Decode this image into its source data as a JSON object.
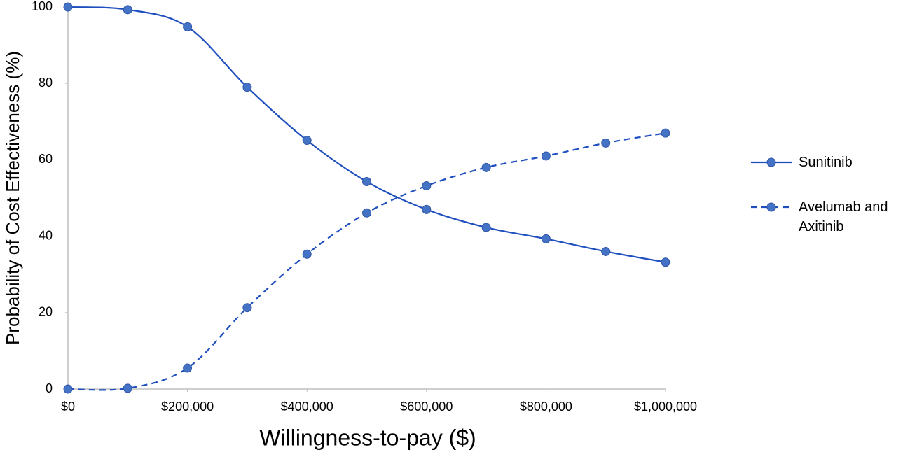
{
  "chart_data": {
    "type": "line",
    "x_label": "Willingness-to-pay ($)",
    "y_label": "Probability of Cost Effectiveness (%)",
    "x": [
      0,
      100000,
      200000,
      300000,
      400000,
      500000,
      600000,
      700000,
      800000,
      900000,
      1000000
    ],
    "series": [
      {
        "name": "Sunitinib",
        "color": "#4472c4",
        "line_color": "#1f4fbf",
        "line_style": "solid",
        "values": [
          100,
          99.3,
          94.8,
          79,
          65.1,
          54.3,
          47,
          42.3,
          39.3,
          36,
          33.2
        ]
      },
      {
        "name": "Avelumab and Axitinib",
        "color": "#4472c4",
        "line_color": "#1f4fbf",
        "line_style": "dashed",
        "values": [
          0,
          0.2,
          5.5,
          21.3,
          35.3,
          46.1,
          53.2,
          58,
          61,
          64.4,
          67
        ]
      }
    ],
    "xlim": [
      0,
      1000000
    ],
    "xticks": [
      {
        "value": 0,
        "label": "$0"
      },
      {
        "value": 200000,
        "label": "$200,000"
      },
      {
        "value": 400000,
        "label": "$400,000"
      },
      {
        "value": 600000,
        "label": "$600,000"
      },
      {
        "value": 800000,
        "label": "$800,000"
      },
      {
        "value": 1000000,
        "label": "$1,000,000"
      }
    ],
    "ylim": [
      0,
      100
    ],
    "yticks": [
      0,
      20,
      40,
      60,
      80,
      100
    ],
    "smooth": true,
    "legend": "right"
  }
}
